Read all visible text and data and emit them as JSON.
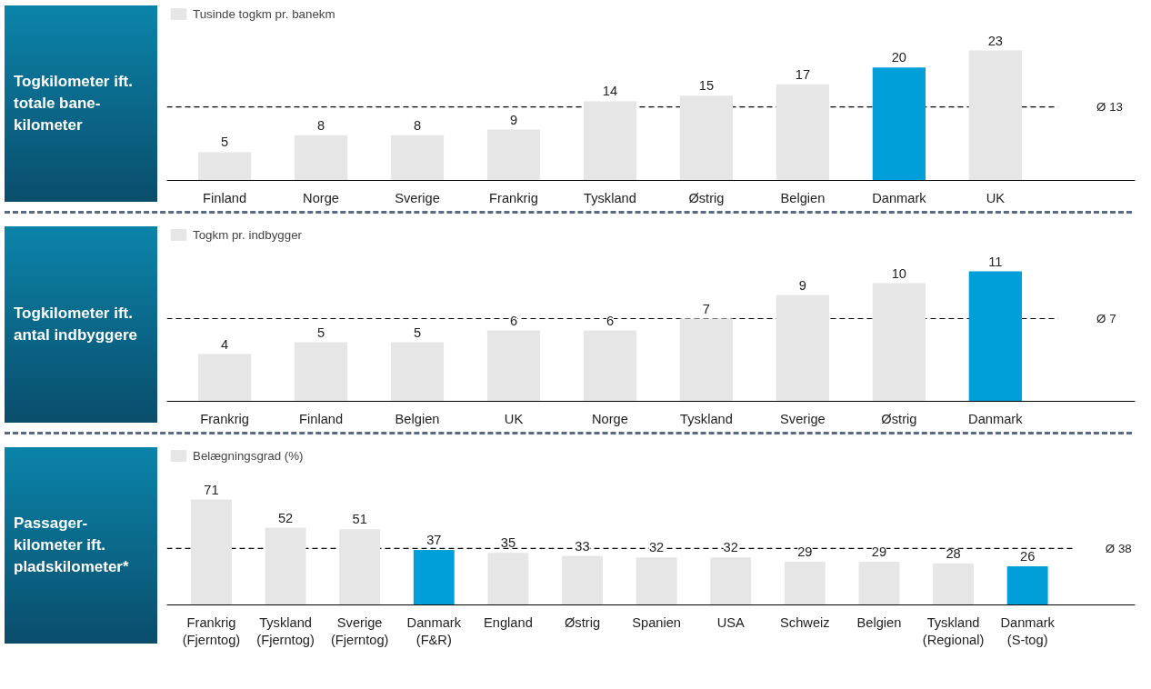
{
  "chart_data": [
    {
      "type": "bar",
      "title": "Togkilometer ift. totale bane-kilometer",
      "categories": [
        "Finland",
        "Norge",
        "Sverige",
        "Frankrig",
        "Tyskland",
        "Østrig",
        "Belgien",
        "Danmark",
        "UK"
      ],
      "series": [
        {
          "name": "Tusinde togkm pr. banekm",
          "color": "#e6e6e6",
          "colors": [
            "#e6e6e6",
            "#e6e6e6",
            "#e6e6e6",
            "#e6e6e6",
            "#e6e6e6",
            "#e6e6e6",
            "#e6e6e6",
            "#009fda",
            "#e6e6e6"
          ],
          "values": [
            5,
            8,
            8,
            9,
            14,
            15,
            17,
            20,
            23
          ]
        }
      ],
      "ref_lines": [
        {
          "axis": "y",
          "value": 13,
          "label": "Ø 13",
          "line_style": "dashed",
          "color": "#000000"
        }
      ],
      "data_labels": true,
      "legend": "top left",
      "grid": false
    },
    {
      "type": "bar",
      "title": "Togkilometer ift. antal indbyggere",
      "categories": [
        "Frankrig",
        "Finland",
        "Belgien",
        "UK",
        "Norge",
        "Tyskland",
        "Sverige",
        "Østrig",
        "Danmark"
      ],
      "series": [
        {
          "name": "Togkm pr. indbygger",
          "color": "#e6e6e6",
          "colors": [
            "#e6e6e6",
            "#e6e6e6",
            "#e6e6e6",
            "#e6e6e6",
            "#e6e6e6",
            "#e6e6e6",
            "#e6e6e6",
            "#e6e6e6",
            "#009fda"
          ],
          "values": [
            4,
            5,
            5,
            6,
            6,
            7,
            9,
            10,
            11
          ]
        }
      ],
      "ref_lines": [
        {
          "axis": "y",
          "value": 7,
          "label": "Ø 7",
          "line_style": "dashed",
          "color": "#000000"
        }
      ],
      "data_labels": true,
      "legend": "top left",
      "grid": false
    },
    {
      "type": "bar",
      "title": "Passager-kilometer ift. pladskilometer*",
      "categories": [
        "Frankrig\n(Fjerntog)",
        "Tyskland\n(Fjerntog)",
        "Sverige\n(Fjerntog)",
        "Danmark\n(F&R)",
        "England",
        "Østrig",
        "Spanien",
        "USA",
        "Schweiz",
        "Belgien",
        "Tyskland\n(Regional)",
        "Danmark\n(S-tog)"
      ],
      "series": [
        {
          "name": "Belægningsgrad (%)",
          "color": "#e6e6e6",
          "colors": [
            "#e6e6e6",
            "#e6e6e6",
            "#e6e6e6",
            "#009fda",
            "#e6e6e6",
            "#e6e6e6",
            "#e6e6e6",
            "#e6e6e6",
            "#e6e6e6",
            "#e6e6e6",
            "#e6e6e6",
            "#009fda"
          ],
          "values": [
            71,
            52,
            51,
            37,
            35,
            33,
            32,
            32,
            29,
            29,
            28,
            26
          ]
        }
      ],
      "ref_lines": [
        {
          "axis": "y",
          "value": 38,
          "label": "Ø 38",
          "line_style": "dashed",
          "color": "#000000"
        }
      ],
      "data_labels": true,
      "legend": "top left",
      "grid": false
    }
  ]
}
